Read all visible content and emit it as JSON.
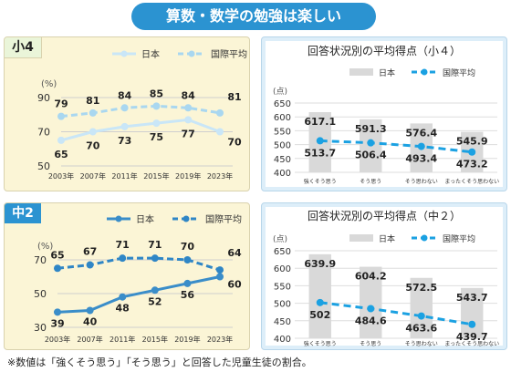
{
  "title": "算数・数学の勉強は楽しい",
  "footnote": "※数値は「強くそう思う」「そう思う」と回答した児童生徒の割合。",
  "colors": {
    "banner": "#2b93d1",
    "japan_line": "#c9e6f7",
    "japan_line_dark": "#3a8dc9",
    "intl_line": "#a9d7f0",
    "intl_line_dark": "#2f86c6",
    "bar": "#d9d9d9",
    "dash_blue": "#1ba1e2"
  },
  "chart_data": [
    {
      "type": "line",
      "grade": "小4",
      "x": [
        "2003年",
        "2007年",
        "2011年",
        "2015年",
        "2019年",
        "2023年"
      ],
      "series": [
        {
          "name": "日本",
          "values": [
            65,
            70,
            73,
            75,
            77,
            70
          ]
        },
        {
          "name": "国際平均",
          "values": [
            79,
            81,
            84,
            85,
            84,
            81
          ]
        }
      ],
      "ylabel": "(%)",
      "yticks": [
        "90",
        "70",
        "50"
      ],
      "ylim": [
        50,
        90
      ]
    },
    {
      "type": "bar",
      "title": "回答状況別の平均得点（小４）",
      "ylabel": "(点)",
      "categories": [
        "強くそう思う",
        "そう思う",
        "そう思わない",
        "まったくそう思わない"
      ],
      "series": [
        {
          "name": "日本",
          "values": [
            617.1,
            591.3,
            576.4,
            545.9
          ]
        },
        {
          "name": "国際平均",
          "values": [
            513.7,
            506.4,
            493.4,
            473.2
          ]
        }
      ],
      "yticks": [
        "650",
        "600",
        "550",
        "500",
        "450",
        "400"
      ],
      "ylim": [
        400,
        650
      ]
    },
    {
      "type": "line",
      "grade": "中2",
      "x": [
        "2003年",
        "2007年",
        "2011年",
        "2015年",
        "2019年",
        "2023年"
      ],
      "series": [
        {
          "name": "日本",
          "values": [
            39,
            40,
            48,
            52,
            56,
            60
          ]
        },
        {
          "name": "国際平均",
          "values": [
            65,
            67,
            71,
            71,
            70,
            64
          ]
        }
      ],
      "ylabel": "(%)",
      "yticks": [
        "70",
        "50",
        "30"
      ],
      "ylim": [
        30,
        70
      ]
    },
    {
      "type": "bar",
      "title": "回答状況別の平均得点（中２）",
      "ylabel": "(点)",
      "categories": [
        "強くそう思う",
        "そう思う",
        "そう思わない",
        "まったくそう思わない"
      ],
      "series": [
        {
          "name": "日本",
          "values": [
            639.9,
            604.2,
            572.5,
            543.7
          ]
        },
        {
          "name": "国際平均",
          "values": [
            502.0,
            484.6,
            463.6,
            439.7
          ]
        }
      ],
      "yticks": [
        "650",
        "600",
        "550",
        "500",
        "450",
        "400"
      ],
      "ylim": [
        400,
        650
      ]
    }
  ]
}
